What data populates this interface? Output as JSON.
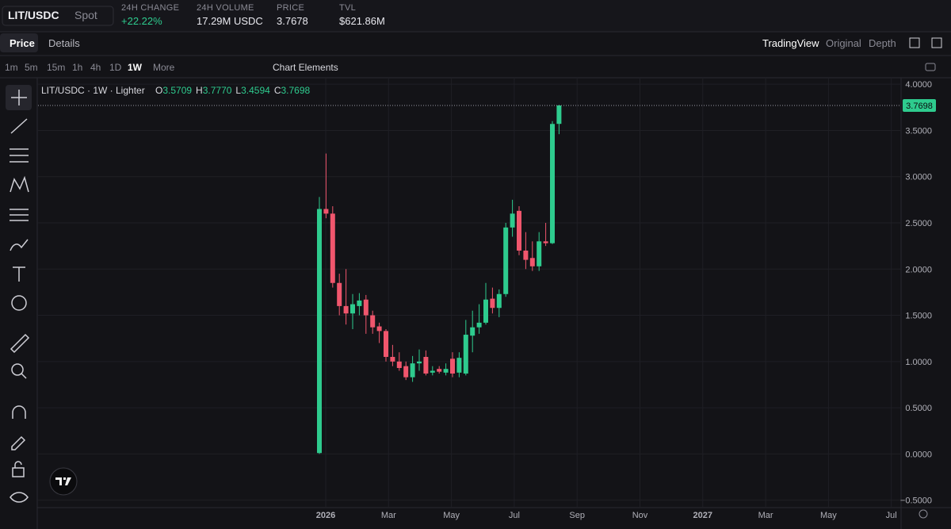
{
  "header": {
    "symbol": "LIT/USDC",
    "market": "Spot",
    "stats": [
      {
        "label": "24H CHANGE",
        "value": "+22.22%"
      },
      {
        "label": "24H VOLUME",
        "value": "17.29M USDC"
      },
      {
        "label": "PRICE",
        "value": "3.7678"
      },
      {
        "label": "TVL",
        "value": "$621.86M"
      }
    ]
  },
  "tabs": [
    "Price",
    "Details"
  ],
  "views": [
    "TradingView",
    "Original",
    "Depth"
  ],
  "timeframes": [
    "1m",
    "5m",
    "15m",
    "1h",
    "4h",
    "1D",
    "1W",
    "More"
  ],
  "chart_elements": "Chart Elements",
  "chart_data": {
    "type": "candlestick",
    "legend_title": "LIT/USDC · 1W · Lighter",
    "ohlc_legend": [
      {
        "key": "O",
        "label": "3.5709"
      },
      {
        "key": "H",
        "label": "3.7770"
      },
      {
        "key": "L",
        "label": "3.4594"
      },
      {
        "key": "C",
        "label": "3.7698"
      }
    ],
    "open": [
      0.01,
      2.65,
      2.6,
      1.85,
      1.6,
      1.52,
      1.6,
      1.67,
      1.5,
      1.38,
      1.33,
      1.05,
      1.0,
      0.95,
      0.83,
      0.98,
      1.05,
      0.88,
      0.92,
      0.88,
      1.03,
      0.88,
      0.87,
      1.28,
      1.37,
      1.42,
      1.68,
      1.58,
      1.73,
      2.45,
      2.63,
      2.2,
      2.12,
      2.03,
      2.3,
      2.28,
      3.5709
    ],
    "high": [
      2.78,
      3.25,
      2.68,
      1.95,
      2.0,
      1.73,
      1.74,
      1.72,
      1.55,
      1.42,
      1.35,
      1.18,
      1.1,
      1.0,
      1.06,
      1.13,
      1.12,
      0.95,
      0.95,
      0.98,
      1.1,
      1.1,
      1.45,
      1.55,
      1.62,
      1.85,
      1.8,
      1.78,
      2.5,
      2.75,
      2.68,
      2.4,
      2.3,
      2.4,
      2.5,
      3.6,
      3.777
    ],
    "low": [
      0.0,
      2.55,
      1.8,
      1.5,
      1.4,
      1.35,
      1.5,
      1.3,
      1.3,
      1.2,
      1.0,
      0.95,
      0.9,
      0.8,
      0.78,
      0.9,
      0.85,
      0.85,
      0.87,
      0.85,
      0.83,
      0.83,
      0.85,
      1.1,
      1.3,
      1.4,
      1.52,
      1.48,
      1.7,
      2.35,
      2.15,
      2.0,
      1.98,
      1.98,
      2.25,
      2.27,
      3.4594
    ],
    "close": [
      2.65,
      2.6,
      1.85,
      1.6,
      1.52,
      1.62,
      1.66,
      1.5,
      1.37,
      1.33,
      1.05,
      1.0,
      0.93,
      0.83,
      0.98,
      1.0,
      0.87,
      0.9,
      0.89,
      0.92,
      0.87,
      1.04,
      1.29,
      1.37,
      1.42,
      1.67,
      1.58,
      1.73,
      2.45,
      2.6,
      2.2,
      2.1,
      2.03,
      2.3,
      2.28,
      3.57,
      3.7698
    ],
    "up_color": "#2ecb8e",
    "down_color": "#f0566d",
    "last_price_label": "3.7698",
    "ylim": [
      -0.58,
      4.07
    ],
    "yticks": [
      {
        "value": -0.5,
        "label": "−0.5000"
      },
      {
        "value": 0,
        "label": "0.0000"
      },
      {
        "value": 0.5,
        "label": "0.5000"
      },
      {
        "value": 1,
        "label": "1.0000"
      },
      {
        "value": 1.5,
        "label": "1.5000"
      },
      {
        "value": 2,
        "label": "2.0000"
      },
      {
        "value": 2.5,
        "label": "2.5000"
      },
      {
        "value": 3,
        "label": "3.0000"
      },
      {
        "value": 3.5,
        "label": "3.5000"
      },
      {
        "value": 4,
        "label": "4.0000"
      }
    ],
    "x_axis_labels": [
      "2026",
      "Mar",
      "May",
      "Jul",
      "Sep",
      "Nov",
      "2027",
      "Mar",
      "May",
      "Jul"
    ],
    "grid": true
  }
}
